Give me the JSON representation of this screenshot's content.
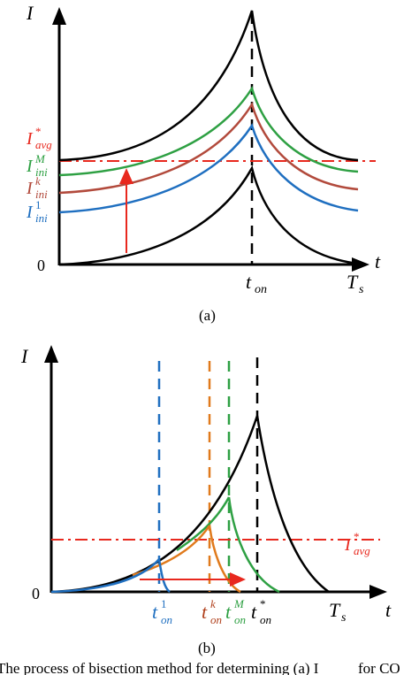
{
  "panel_a": {
    "y_axis_label": "I",
    "x_axis_label": "t",
    "origin_label": "0",
    "ton_label": {
      "main": "t",
      "sub": "on"
    },
    "ts_label": {
      "main": "T",
      "sub": "s"
    },
    "caption": "(a)",
    "levels": [
      {
        "main": "I",
        "sup": "*",
        "sub": "avg",
        "color": "#e8281e"
      },
      {
        "main": "I",
        "sup": "M",
        "sub": "ini",
        "color": "#2ea043"
      },
      {
        "main": "I",
        "sup": "k",
        "sub": "ini",
        "color": "#b24a3c"
      },
      {
        "main": "I",
        "sup": "1",
        "sub": "ini",
        "color": "#1f6fc0"
      }
    ]
  },
  "panel_b": {
    "y_axis_label": "I",
    "x_axis_label": "t",
    "origin_label": "0",
    "avg_label": {
      "main": "I",
      "sup": "*",
      "sub": "avg",
      "color": "#e8281e"
    },
    "ts_label": {
      "main": "T",
      "sub": "s"
    },
    "caption": "(b)",
    "ton_labels": [
      {
        "main": "t",
        "sup": "1",
        "sub": "on",
        "color": "#1f6fc0"
      },
      {
        "main": "t",
        "sup": "k",
        "sub": "on",
        "color": "#b0401c"
      },
      {
        "main": "t",
        "sup": "M",
        "sub": "on",
        "color": "#2ea043"
      },
      {
        "main": "t",
        "sup": "*",
        "sub": "on",
        "color": "#000000"
      }
    ]
  },
  "caption_text": "The process of bisection method for determining (a) I",
  "caption_tail": "for CO"
}
